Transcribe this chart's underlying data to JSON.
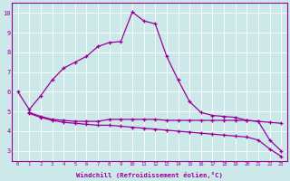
{
  "xlabel": "Windchill (Refroidissement éolien,°C)",
  "xlim": [
    -0.5,
    23.5
  ],
  "ylim": [
    2.5,
    10.5
  ],
  "xticks": [
    0,
    1,
    2,
    3,
    4,
    5,
    6,
    7,
    8,
    9,
    10,
    11,
    12,
    13,
    14,
    15,
    16,
    17,
    18,
    19,
    20,
    21,
    22,
    23
  ],
  "yticks": [
    3,
    4,
    5,
    6,
    7,
    8,
    9,
    10
  ],
  "bg_color": "#cce8e8",
  "line_color": "#990099",
  "line1_x": [
    0,
    1,
    2,
    3,
    4,
    5,
    6,
    7,
    8,
    9,
    10,
    11,
    12,
    13,
    14,
    15,
    16,
    17,
    18,
    19,
    20,
    21,
    22,
    23
  ],
  "line1_y": [
    6.0,
    5.1,
    5.8,
    6.6,
    7.2,
    7.5,
    7.8,
    8.3,
    8.5,
    8.55,
    10.05,
    9.6,
    9.45,
    7.8,
    6.6,
    5.5,
    4.95,
    4.8,
    4.75,
    4.7,
    4.55,
    4.5,
    3.55,
    3.0
  ],
  "line2_x": [
    1,
    2,
    3,
    4,
    5,
    6,
    7,
    8,
    9,
    10,
    11,
    12,
    13,
    14,
    15,
    16,
    17,
    18,
    19,
    20,
    21,
    22,
    23
  ],
  "line2_y": [
    4.95,
    4.75,
    4.6,
    4.55,
    4.5,
    4.5,
    4.5,
    4.6,
    4.6,
    4.6,
    4.6,
    4.6,
    4.55,
    4.55,
    4.55,
    4.55,
    4.55,
    4.55,
    4.55,
    4.55,
    4.5,
    4.45,
    4.4
  ],
  "line3_x": [
    1,
    2,
    3,
    4,
    5,
    6,
    7,
    8,
    9,
    10,
    11,
    12,
    13,
    14,
    15,
    16,
    17,
    18,
    19,
    20,
    21,
    22,
    23
  ],
  "line3_y": [
    4.9,
    4.7,
    4.55,
    4.45,
    4.4,
    4.35,
    4.3,
    4.3,
    4.25,
    4.2,
    4.15,
    4.1,
    4.05,
    4.0,
    3.95,
    3.9,
    3.85,
    3.8,
    3.75,
    3.7,
    3.55,
    3.1,
    2.72
  ]
}
